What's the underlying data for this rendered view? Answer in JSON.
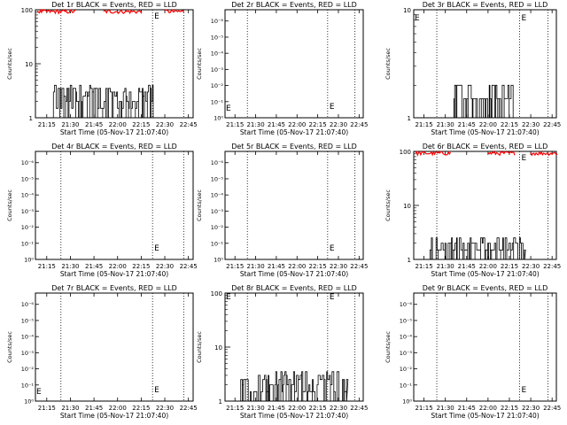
{
  "chart_data": [
    {
      "type": "line",
      "title": "Det 1r BLACK = Events, RED = LLD",
      "xlabel": "Start Time (05-Nov-17 21:07:40)",
      "ylabel": "Counts/sec",
      "scale": "log",
      "ylim": [
        1,
        100
      ],
      "y_ticks": [
        "1",
        "10",
        "100"
      ],
      "x_ticks": [
        "21:15",
        "21:30",
        "21:45",
        "22:00",
        "22:15",
        "22:30",
        "22:45"
      ],
      "annotation": "E",
      "series": [
        {
          "name": "Events",
          "color": "#000000",
          "style": "spiky",
          "band": [
            1,
            4
          ],
          "x_range": [
            21.32,
            22.37
          ]
        },
        {
          "name": "LLD",
          "color": "#ff0000",
          "style": "band",
          "band": [
            85,
            100
          ],
          "segments": [
            [
              21.15,
              21.55
            ],
            [
              21.85,
              22.25
            ],
            [
              22.5,
              22.7
            ]
          ]
        }
      ]
    },
    {
      "type": "line",
      "title": "Det 2r BLACK = Events, RED = LLD",
      "xlabel": "Start Time (05-Nov-17 21:07:40)",
      "ylabel": "Counts/sec",
      "scale": "log",
      "ylim": [
        1,
        100000000
      ],
      "y_ticks": [
        "10⁰",
        "10⁻¹",
        "10⁻²",
        "10⁻³",
        "10⁻⁴",
        "10⁻⁵",
        "10⁻⁶"
      ],
      "x_ticks": [
        "21:15",
        "21:30",
        "21:45",
        "22:00",
        "22:15",
        "22:30",
        "22:45"
      ],
      "annotation": "E",
      "series": []
    },
    {
      "type": "line",
      "title": "Det 3r BLACK = Events, RED = LLD",
      "xlabel": "Start Time (05-Nov-17 21:07:40)",
      "ylabel": "Counts/sec",
      "scale": "log",
      "ylim": [
        1,
        10
      ],
      "y_ticks": [
        "1",
        "10"
      ],
      "x_ticks": [
        "21:15",
        "21:30",
        "21:45",
        "22:00",
        "22:15",
        "22:30",
        "22:45"
      ],
      "annotation": "E",
      "series": [
        {
          "name": "Events",
          "color": "#000000",
          "style": "spiky",
          "band": [
            1,
            2
          ],
          "x_range": [
            21.6,
            22.3
          ]
        }
      ]
    },
    {
      "type": "line",
      "title": "Det 4r BLACK = Events, RED = LLD",
      "xlabel": "Start Time (05-Nov-17 21:07:40)",
      "ylabel": "Counts/sec",
      "scale": "log",
      "ylim": [
        1,
        100000000
      ],
      "y_ticks": [
        "10⁰",
        "10⁻¹",
        "10⁻²",
        "10⁻³",
        "10⁻⁴",
        "10⁻⁵",
        "10⁻⁶"
      ],
      "x_ticks": [
        "21:15",
        "21:30",
        "21:45",
        "22:00",
        "22:15",
        "22:30",
        "22:45"
      ],
      "annotation": "E",
      "series": []
    },
    {
      "type": "line",
      "title": "Det 5r BLACK = Events, RED = LLD",
      "xlabel": "Start Time (05-Nov-17 21:07:40)",
      "ylabel": "Counts/sec",
      "scale": "log",
      "ylim": [
        1,
        100000000
      ],
      "y_ticks": [
        "10⁰",
        "10⁻¹",
        "10⁻²",
        "10⁻³",
        "10⁻⁴",
        "10⁻⁵",
        "10⁻⁶"
      ],
      "x_ticks": [
        "21:15",
        "21:30",
        "21:45",
        "22:00",
        "22:15",
        "22:30",
        "22:45"
      ],
      "annotation": "E",
      "series": []
    },
    {
      "type": "line",
      "title": "Det 6r BLACK = Events, RED = LLD",
      "xlabel": "Start Time (05-Nov-17 21:07:40)",
      "ylabel": "Counts/sec",
      "scale": "log",
      "ylim": [
        1,
        100
      ],
      "y_ticks": [
        "1",
        "10",
        "100"
      ],
      "x_ticks": [
        "21:15",
        "21:30",
        "21:45",
        "22:00",
        "22:15",
        "22:30",
        "22:45"
      ],
      "annotation": "E",
      "series": [
        {
          "name": "Events",
          "color": "#000000",
          "style": "spiky",
          "band": [
            1,
            2.5
          ],
          "x_range": [
            21.32,
            22.43
          ]
        },
        {
          "name": "LLD",
          "color": "#ff0000",
          "style": "band",
          "band": [
            85,
            100
          ],
          "segments": [
            [
              21.15,
              21.55
            ],
            [
              22.0,
              22.3
            ],
            [
              22.5,
              22.8
            ]
          ]
        }
      ]
    },
    {
      "type": "line",
      "title": "Det 7r BLACK = Events, RED = LLD",
      "xlabel": "Start Time (05-Nov-17 21:07:40)",
      "ylabel": "Counts/sec",
      "scale": "log",
      "ylim": [
        1,
        100000000
      ],
      "y_ticks": [
        "10⁰",
        "10⁻¹",
        "10⁻²",
        "10⁻³",
        "10⁻⁴",
        "10⁻⁵",
        "10⁻⁶"
      ],
      "x_ticks": [
        "21:15",
        "21:30",
        "21:45",
        "22:00",
        "22:15",
        "22:30",
        "22:45"
      ],
      "annotation": "E",
      "series": []
    },
    {
      "type": "line",
      "title": "Det 8r BLACK = Events, RED = LLD",
      "xlabel": "Start Time (05-Nov-17 21:07:40)",
      "ylabel": "Counts/sec",
      "scale": "log",
      "ylim": [
        1,
        100
      ],
      "y_ticks": [
        "1",
        "10",
        "100"
      ],
      "x_ticks": [
        "21:15",
        "21:30",
        "21:45",
        "22:00",
        "22:15",
        "22:30",
        "22:45"
      ],
      "annotation": "E",
      "series": [
        {
          "name": "Events",
          "color": "#000000",
          "style": "spiky",
          "band": [
            1,
            3.5
          ],
          "x_range": [
            21.32,
            22.6
          ]
        }
      ]
    },
    {
      "type": "line",
      "title": "Det 9r BLACK = Events, RED = LLD",
      "xlabel": "Start Time (05-Nov-17 21:07:40)",
      "ylabel": "Counts/sec",
      "scale": "log",
      "ylim": [
        1,
        100000000
      ],
      "y_ticks": [
        "10⁰",
        "10⁻¹",
        "10⁻²",
        "10⁻³",
        "10⁻⁴",
        "10⁻⁵",
        "10⁻⁶"
      ],
      "x_ticks": [
        "21:15",
        "21:30",
        "21:45",
        "22:00",
        "22:15",
        "22:30",
        "22:45"
      ],
      "annotation": "E",
      "series": []
    }
  ],
  "x_axis_hours": [
    21.13,
    22.8
  ],
  "vertical_markers_hours": [
    21.4,
    22.37,
    22.7
  ]
}
